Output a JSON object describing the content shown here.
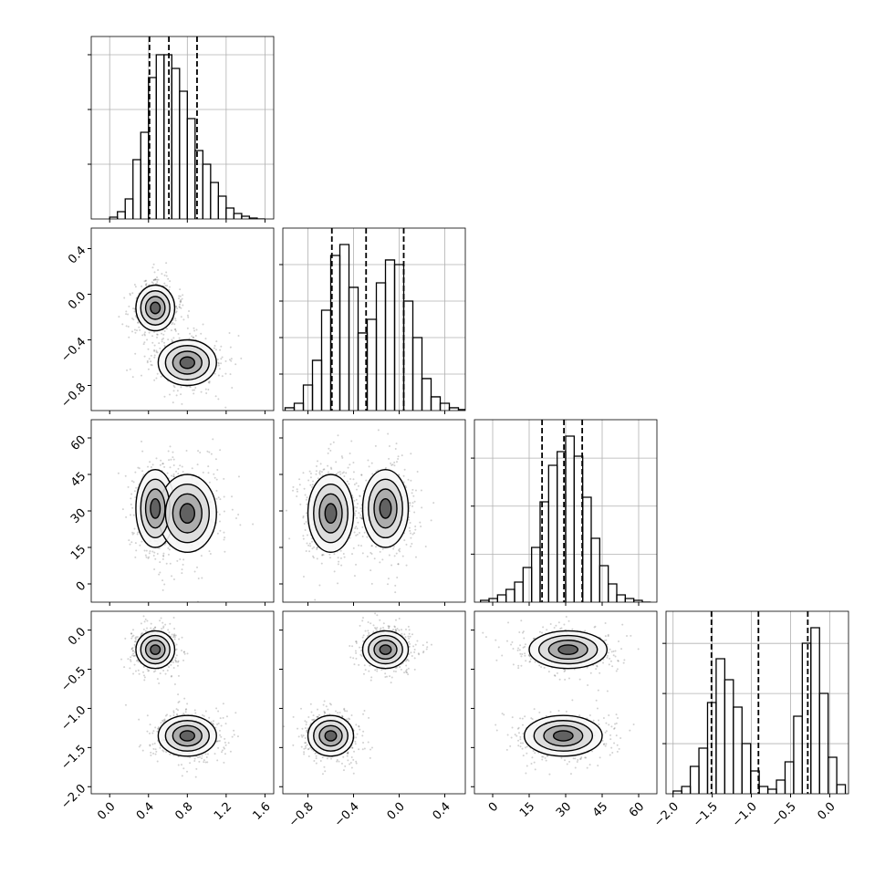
{
  "chart_data": {
    "type": "corner",
    "color": "#000000",
    "grid": true,
    "params": [
      {
        "lim": [
          -0.19,
          1.69
        ],
        "ticks": [
          {
            "value": 0,
            "label": "0.0"
          },
          0.4,
          0.8,
          1.2,
          1.6
        ]
      },
      {
        "lim": [
          -1.02,
          0.58
        ],
        "ticks": [
          {
            "value": -0.8,
            "label": "−0.8"
          },
          {
            "value": -0.4,
            "label": "−0.4"
          },
          {
            "value": 0,
            "label": "0.0"
          },
          0.4
        ]
      },
      {
        "lim": [
          -7.5,
          67.5
        ],
        "ticks": [
          0,
          15,
          30,
          45,
          60
        ]
      },
      {
        "lim": [
          -2.09,
          0.24
        ],
        "ticks": [
          {
            "value": -2,
            "label": "−2.0"
          },
          {
            "value": -1.5,
            "label": "−1.5"
          },
          {
            "value": -1,
            "label": "−1.0"
          },
          {
            "value": -0.5,
            "label": "−0.5"
          },
          {
            "value": 0,
            "label": "0.0"
          }
        ]
      }
    ],
    "hists": [
      {
        "bins": [
          0,
          0.08,
          0.16,
          0.24,
          0.32,
          0.4,
          0.48,
          0.56,
          0.64,
          0.72,
          0.8,
          0.88,
          0.96,
          1.04,
          1.12,
          1.2,
          1.28,
          1.36,
          1.44,
          1.52,
          1.6
        ],
        "counts": [
          33,
          133,
          367,
          1083,
          1583,
          2583,
          3000,
          3000,
          2750,
          2333,
          1833,
          1250,
          1000,
          667,
          417,
          200,
          100,
          50,
          17,
          0
        ],
        "ylim": [
          0,
          3333
        ],
        "yticks": [
          1000,
          2000,
          3000
        ],
        "quantiles": [
          0.41,
          0.61,
          0.9
        ]
      },
      {
        "bins": [
          -1,
          -0.92,
          -0.84,
          -0.76,
          -0.68,
          -0.6,
          -0.52,
          -0.44,
          -0.36,
          -0.28,
          -0.2,
          -0.12,
          -0.04,
          0.04,
          0.12,
          0.2,
          0.28,
          0.36,
          0.44,
          0.52,
          0.6
        ],
        "counts": [
          38,
          100,
          350,
          688,
          1375,
          2125,
          2275,
          1688,
          1063,
          1250,
          1750,
          2063,
          2000,
          1500,
          1000,
          438,
          188,
          100,
          38,
          13
        ],
        "ylim": [
          0,
          2500
        ],
        "yticks": [
          500,
          1000,
          1500,
          2000
        ],
        "quantiles": [
          -0.59,
          -0.29,
          0.04
        ]
      },
      {
        "bins": [
          -5,
          -1.5,
          2,
          5.5,
          9,
          12.5,
          16,
          19.5,
          23,
          26.5,
          30,
          33.5,
          37,
          40.5,
          44,
          47.5,
          51,
          54.5,
          58,
          61.5,
          65
        ],
        "counts": [
          38,
          76,
          152,
          266,
          418,
          722,
          1140,
          2090,
          2850,
          3135,
          3458,
          3040,
          2185,
          1330,
          760,
          380,
          152,
          76,
          38,
          0
        ],
        "ylim": [
          0,
          3800
        ],
        "yticks": [
          1000,
          2000,
          3000
        ],
        "quantiles": [
          20.3,
          29.3,
          36.8
        ]
      },
      {
        "bins": [
          -2,
          -1.89,
          -1.78,
          -1.67,
          -1.56,
          -1.45,
          -1.34,
          -1.23,
          -1.12,
          -1.01,
          -0.9,
          -0.79,
          -0.68,
          -0.57,
          -0.46,
          -0.35,
          -0.24,
          -0.13,
          -0.02,
          0.09,
          0.2
        ],
        "counts": [
          55,
          146,
          546,
          910,
          1820,
          2694,
          2275,
          1729,
          1001,
          455,
          146,
          91,
          273,
          637,
          1547,
          3003,
          3312,
          2002,
          728,
          182
        ],
        "ylim": [
          0,
          3640
        ],
        "yticks": [
          1000,
          2000,
          3000
        ],
        "quantiles": [
          -1.51,
          -0.91,
          -0.28
        ]
      }
    ],
    "components": [
      {
        "weight": 0.5,
        "mean": [
          0.47,
          -0.12,
          31,
          -0.25
        ],
        "sd": [
          0.1,
          0.1,
          8,
          0.12
        ]
      },
      {
        "weight": 0.5,
        "mean": [
          0.8,
          -0.6,
          29,
          -1.35
        ],
        "sd": [
          0.15,
          0.1,
          8,
          0.13
        ]
      }
    ]
  }
}
